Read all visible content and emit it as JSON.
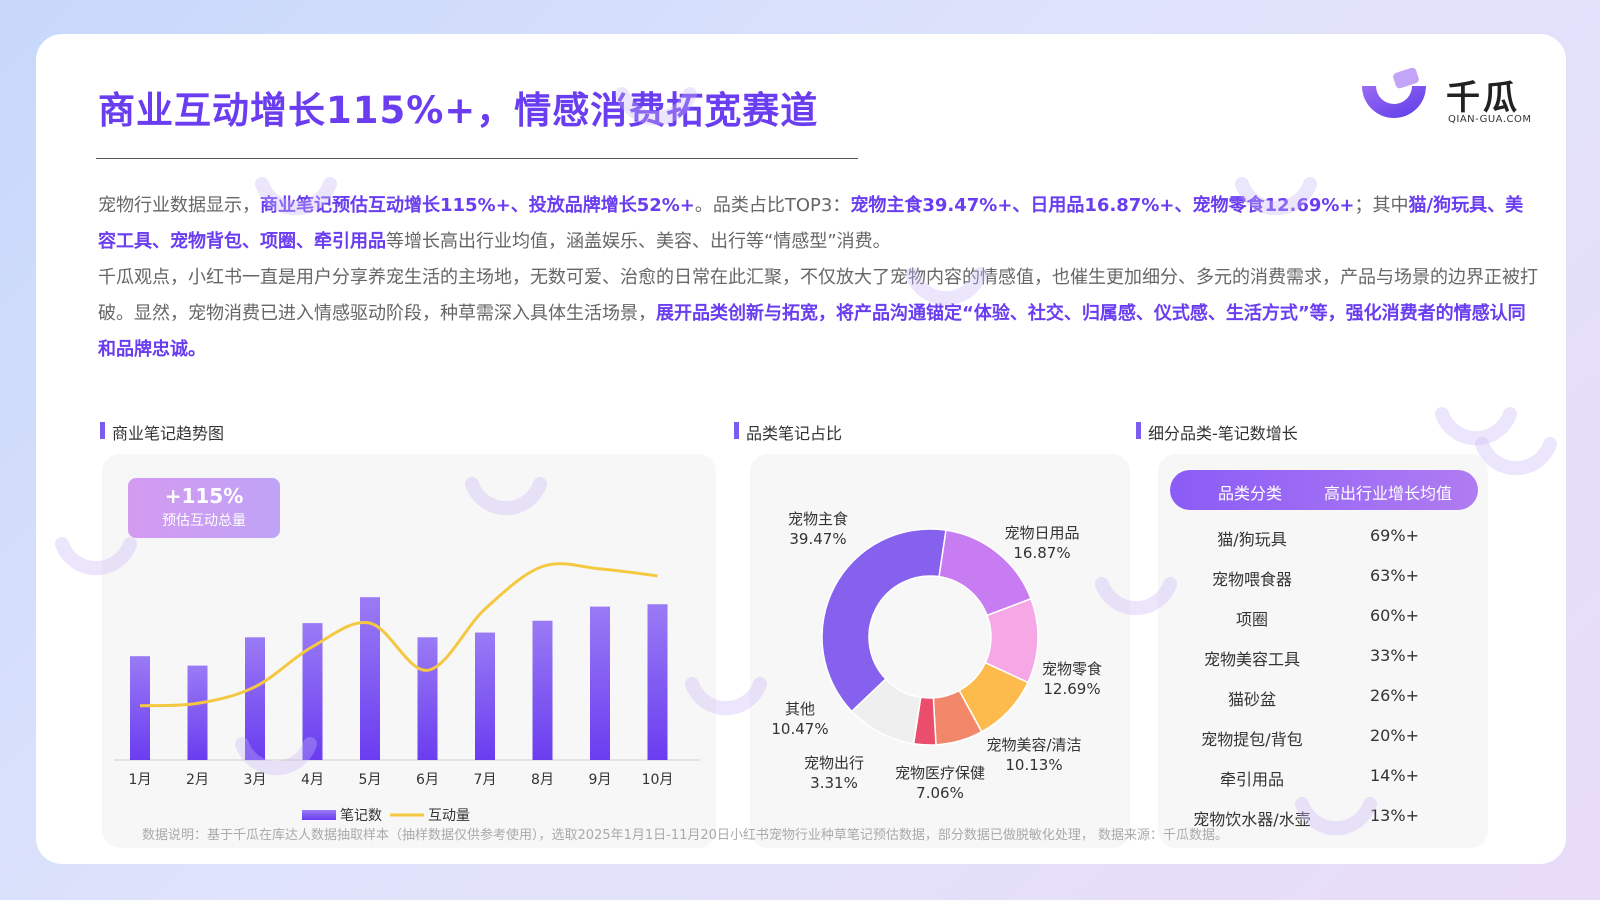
{
  "header": {
    "title": "商业互动增长115%+，情感消费拓宽赛道",
    "logo_name": "千瓜",
    "logo_sub": "QIAN-GUA.COM"
  },
  "intro": {
    "p1": [
      {
        "text": "宠物行业数据显示，",
        "hl": false
      },
      {
        "text": "商业笔记预估互动增长115%+、投放品牌增长52%+",
        "hl": true
      },
      {
        "text": "。品类占比TOP3：",
        "hl": false
      },
      {
        "text": "宠物主食39.47%+、日用品16.87%+、宠物零食12.69%+",
        "hl": true
      },
      {
        "text": "；其中",
        "hl": false
      },
      {
        "text": "猫/狗玩具、美容工具、宠物背包、项圈、牵引用品",
        "hl": true
      },
      {
        "text": "等增长高出行业均值，涵盖娱乐、美容、出行等“情感型”消费。",
        "hl": false
      }
    ],
    "p2": [
      {
        "text": "千瓜观点，小红书一直是用户分享养宠生活的主场地，无数可爱、治愈的日常在此汇聚，不仅放大了宠物内容的情感值，也催生更加细分、多元的消费需求，产品与场景的边界正被打破。显然，宠物消费已进入情感驱动阶段，种草需深入具体生活场景，",
        "hl": false
      },
      {
        "text": "展开品类创新与拓宽，将产品沟通锚定“体验、社交、归属感、仪式感、生活方式”等，强化消费者的情感认同和品牌忠诚。",
        "hl": true
      }
    ]
  },
  "sections": {
    "trend_title": "商业笔记趋势图",
    "pie_title": "品类笔记占比",
    "table_title": "细分品类-笔记数增长"
  },
  "badge": {
    "value": "+115%",
    "label": "预估互动总量"
  },
  "chart_data": [
    {
      "type": "bar",
      "categories": [
        "1月",
        "2月",
        "3月",
        "4月",
        "5月",
        "6月",
        "7月",
        "8月",
        "9月",
        "10月"
      ],
      "series": [
        {
          "name": "笔记数",
          "type": "bar",
          "values": [
            44,
            40,
            52,
            58,
            69,
            52,
            54,
            59,
            65,
            66
          ]
        },
        {
          "name": "互动量",
          "type": "line",
          "values": [
            23,
            24,
            31,
            48,
            58,
            38,
            64,
            82,
            81,
            78
          ]
        }
      ],
      "ylim": [
        0,
        100
      ],
      "legend": "bottom",
      "colors": {
        "bar_top": "#9a7bf5",
        "bar_bottom": "#6a3df0",
        "line": "#f5c842"
      }
    },
    {
      "type": "pie",
      "donut": true,
      "slices": [
        {
          "label": "宠物主食",
          "value": 39.47,
          "display": "39.47%",
          "color": "#8561ee"
        },
        {
          "label": "宠物日用品",
          "value": 16.87,
          "display": "16.87%",
          "color": "#c87cf1"
        },
        {
          "label": "宠物零食",
          "value": 12.69,
          "display": "12.69%",
          "color": "#f6a8e6"
        },
        {
          "label": "宠物美容/清洁",
          "value": 10.13,
          "display": "10.13%",
          "color": "#fcbb4c"
        },
        {
          "label": "宠物医疗保健",
          "value": 7.06,
          "display": "7.06%",
          "color": "#f2876a"
        },
        {
          "label": "宠物出行",
          "value": 3.31,
          "display": "3.31%",
          "color": "#ea4e6c"
        },
        {
          "label": "其他",
          "value": 10.47,
          "display": "10.47%",
          "color": "#efefef"
        }
      ]
    },
    {
      "type": "table",
      "columns": [
        "品类分类",
        "高出行业增长均值"
      ],
      "rows": [
        [
          "猫/狗玩具",
          "69%+"
        ],
        [
          "宠物喂食器",
          "63%+"
        ],
        [
          "项圈",
          "60%+"
        ],
        [
          "宠物美容工具",
          "33%+"
        ],
        [
          "猫砂盆",
          "26%+"
        ],
        [
          "宠物提包/背包",
          "20%+"
        ],
        [
          "牵引用品",
          "14%+"
        ],
        [
          "宠物饮水器/水壶",
          "13%+"
        ]
      ]
    }
  ],
  "footer": "数据说明：基于千瓜在库达人数据抽取样本（抽样数据仅供参考使用），选取2025年1月1日-11月20日小红书宠物行业种草笔记预估数据，部分数据已做脱敏化处理， 数据来源：千瓜数据。"
}
